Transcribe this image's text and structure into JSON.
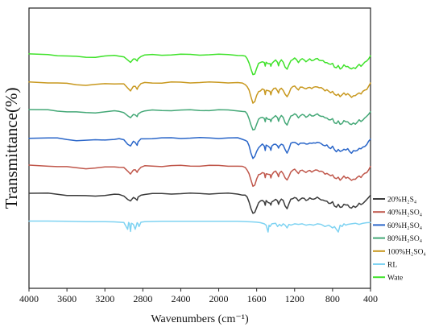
{
  "chart_data": {
    "type": "line",
    "xlabel": "Wavenumbers (cm⁻¹)",
    "ylabel": "Transmittance(%)",
    "xlim": [
      4000,
      400
    ],
    "x_ticks": [
      "4000",
      "3600",
      "3200",
      "2800",
      "2400",
      "2000",
      "1600",
      "1200",
      "800",
      "400"
    ],
    "y_ticks_labeled": false,
    "grid": false,
    "legend_position": "right",
    "stacked_offset": true,
    "series": [
      {
        "name": "20%H₂S₄",
        "color": "#3b3b3b",
        "offset": 0.0
      },
      {
        "name": "40%H₂SO₄",
        "color": "#c0574b",
        "offset": 1.0
      },
      {
        "name": "60%H₂SO₄",
        "color": "#2a66c9",
        "offset": 2.0
      },
      {
        "name": "80%H₂SO₄",
        "color": "#44a877",
        "offset": 3.0
      },
      {
        "name": "100%H₂SO₄",
        "color": "#c8981e",
        "offset": 4.0
      },
      {
        "name": "RL",
        "color": "#7fd3f2",
        "offset": -1.0
      },
      {
        "name": "Wate",
        "color": "#3fe22a",
        "offset": 5.0
      }
    ],
    "profile": {
      "x": [
        4000,
        3800,
        3700,
        3600,
        3500,
        3400,
        3300,
        3200,
        3100,
        3050,
        3000,
        2960,
        2930,
        2900,
        2880,
        2860,
        2850,
        2820,
        2780,
        2700,
        2600,
        2500,
        2400,
        2300,
        2200,
        2100,
        2000,
        1900,
        1800,
        1750,
        1720,
        1700,
        1680,
        1660,
        1640,
        1620,
        1600,
        1580,
        1560,
        1540,
        1520,
        1510,
        1500,
        1480,
        1460,
        1450,
        1440,
        1420,
        1400,
        1380,
        1370,
        1360,
        1340,
        1320,
        1300,
        1280,
        1260,
        1240,
        1220,
        1200,
        1180,
        1160,
        1140,
        1120,
        1100,
        1080,
        1060,
        1040,
        1020,
        1000,
        980,
        960,
        940,
        920,
        900,
        880,
        860,
        840,
        820,
        800,
        780,
        760,
        740,
        720,
        700,
        680,
        660,
        640,
        620,
        600,
        580,
        560,
        540,
        520,
        500,
        480,
        460,
        440,
        420,
        400
      ],
      "y": [
        0.0,
        -0.01,
        -0.03,
        -0.06,
        -0.09,
        -0.1,
        -0.09,
        -0.07,
        -0.05,
        -0.05,
        -0.08,
        -0.22,
        -0.3,
        -0.15,
        -0.17,
        -0.26,
        -0.16,
        -0.06,
        -0.03,
        -0.02,
        -0.02,
        -0.01,
        -0.01,
        -0.01,
        -0.01,
        -0.01,
        -0.01,
        -0.01,
        -0.02,
        -0.05,
        -0.08,
        -0.15,
        -0.3,
        -0.55,
        -0.75,
        -0.7,
        -0.5,
        -0.35,
        -0.3,
        -0.25,
        -0.3,
        -0.45,
        -0.28,
        -0.32,
        -0.35,
        -0.45,
        -0.32,
        -0.25,
        -0.22,
        -0.3,
        -0.4,
        -0.3,
        -0.22,
        -0.28,
        -0.45,
        -0.55,
        -0.4,
        -0.22,
        -0.18,
        -0.15,
        -0.2,
        -0.28,
        -0.2,
        -0.18,
        -0.2,
        -0.25,
        -0.22,
        -0.18,
        -0.22,
        -0.2,
        -0.18,
        -0.16,
        -0.2,
        -0.22,
        -0.25,
        -0.3,
        -0.28,
        -0.35,
        -0.38,
        -0.32,
        -0.45,
        -0.5,
        -0.42,
        -0.52,
        -0.48,
        -0.4,
        -0.45,
        -0.42,
        -0.5,
        -0.55,
        -0.48,
        -0.5,
        -0.45,
        -0.38,
        -0.42,
        -0.35,
        -0.3,
        -0.25,
        -0.15,
        -0.05
      ]
    },
    "rl_profile": {
      "x": [
        4000,
        3800,
        3600,
        3400,
        3200,
        3100,
        3000,
        2960,
        2950,
        2940,
        2930,
        2920,
        2900,
        2880,
        2860,
        2850,
        2840,
        2820,
        2780,
        2600,
        2400,
        2200,
        2000,
        1800,
        1700,
        1650,
        1600,
        1560,
        1520,
        1500,
        1480,
        1470,
        1460,
        1440,
        1400,
        1380,
        1360,
        1340,
        1320,
        1300,
        1280,
        1260,
        1240,
        1200,
        1160,
        1120,
        1080,
        1040,
        1000,
        960,
        920,
        880,
        840,
        800,
        780,
        760,
        740,
        720,
        700,
        680,
        660,
        640,
        600,
        560,
        520,
        480,
        440,
        400
      ],
      "y": [
        0.0,
        0.0,
        -0.01,
        -0.02,
        -0.02,
        -0.03,
        -0.05,
        -0.3,
        -0.05,
        -0.1,
        -0.38,
        -0.08,
        -0.12,
        -0.3,
        -0.06,
        -0.1,
        -0.2,
        -0.04,
        -0.02,
        -0.01,
        -0.01,
        -0.01,
        -0.01,
        -0.01,
        -0.02,
        -0.03,
        -0.04,
        -0.06,
        -0.1,
        -0.15,
        -0.4,
        -0.15,
        -0.2,
        -0.1,
        -0.08,
        -0.2,
        -0.12,
        -0.18,
        -0.1,
        -0.15,
        -0.25,
        -0.12,
        -0.15,
        -0.1,
        -0.12,
        -0.1,
        -0.15,
        -0.12,
        -0.15,
        -0.1,
        -0.12,
        -0.2,
        -0.15,
        -0.25,
        -0.2,
        -0.3,
        -0.4,
        -0.15,
        -0.2,
        -0.1,
        -0.15,
        -0.12,
        -0.1,
        -0.08,
        -0.12,
        -0.08,
        -0.06,
        -0.05
      ]
    }
  }
}
